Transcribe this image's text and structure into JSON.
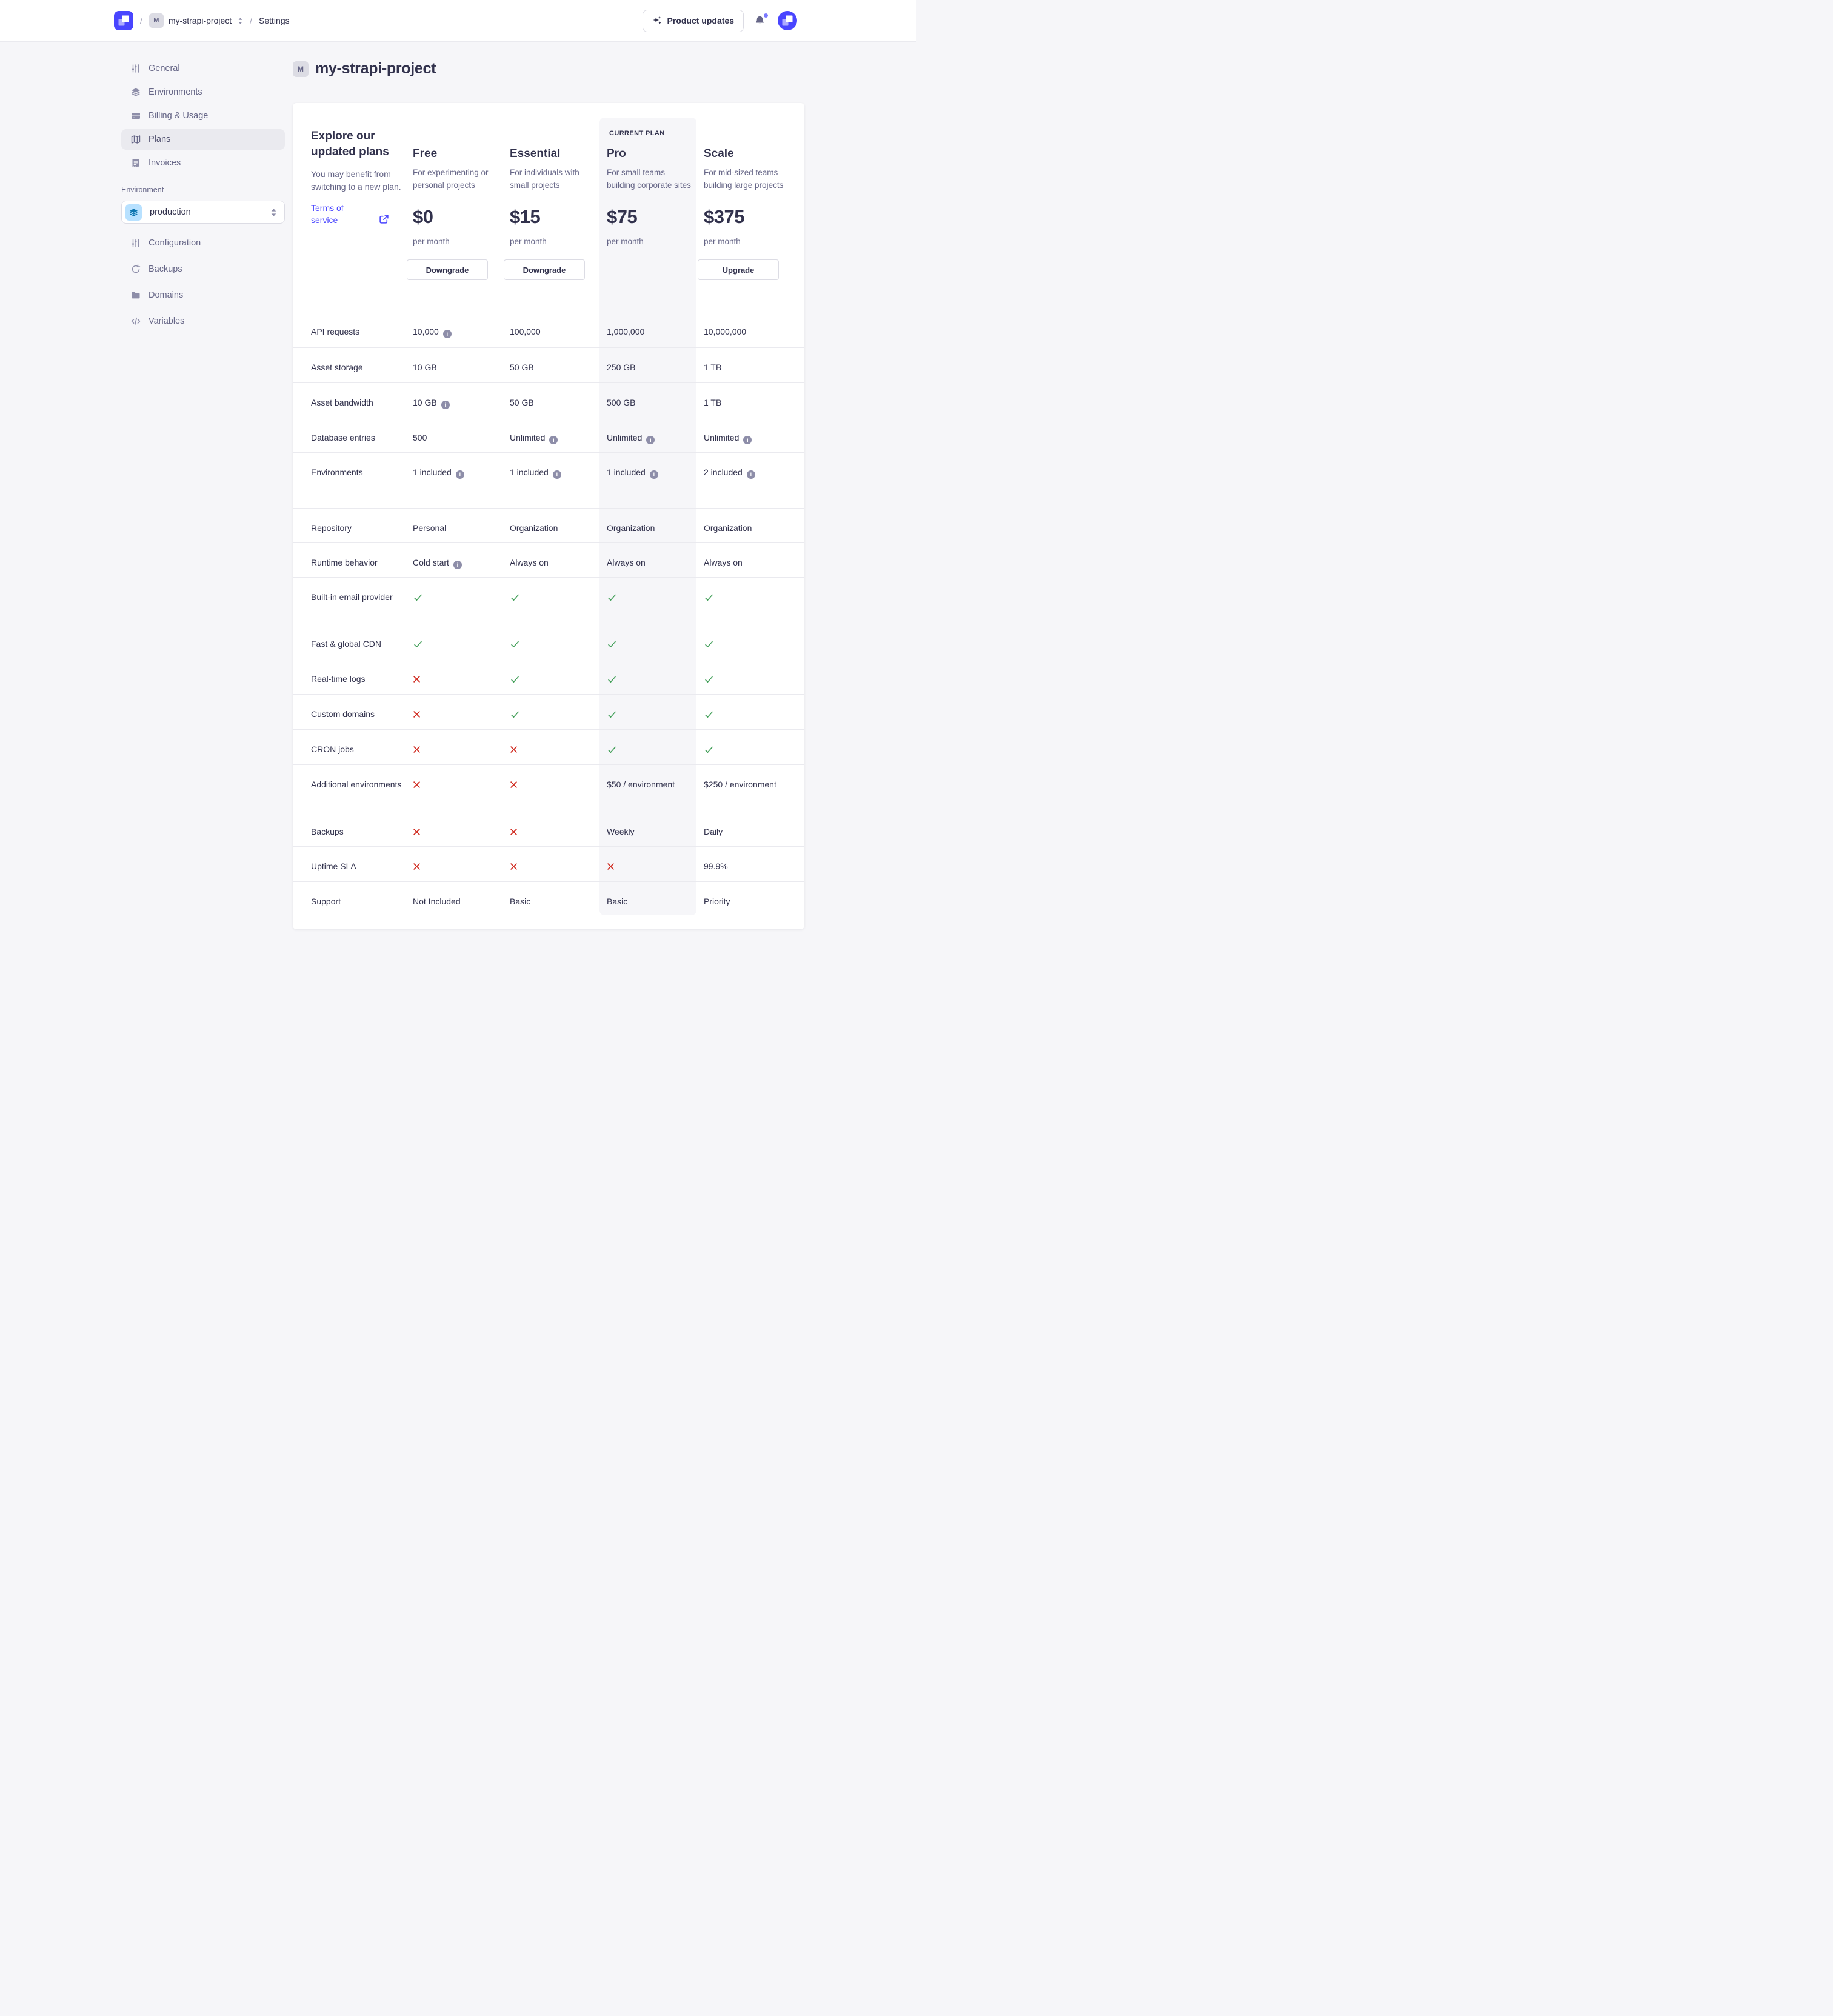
{
  "colors": {
    "accent": "#4945ff",
    "success": "#44a05a",
    "danger": "#d02b20",
    "highlight": "#f6f6f9",
    "info_icon_bg": "#8e8ea9",
    "env_chip_bg": "#b8e1ff",
    "env_chip_icon": "#0c75af"
  },
  "header": {
    "separator": "/",
    "project_chip": "M",
    "project_name": "my-strapi-project",
    "settings_label": "Settings",
    "product_updates_label": "Product updates"
  },
  "sidebar": {
    "items": [
      {
        "label": "General",
        "icon": "sliders-icon",
        "active": false
      },
      {
        "label": "Environments",
        "icon": "layers-icon",
        "active": false
      },
      {
        "label": "Billing & Usage",
        "icon": "credit-card-icon",
        "active": false
      },
      {
        "label": "Plans",
        "icon": "map-icon",
        "active": true
      },
      {
        "label": "Invoices",
        "icon": "receipt-icon",
        "active": false
      }
    ],
    "environment_label": "Environment",
    "environment_value": "production",
    "environment_items": [
      {
        "label": "Configuration",
        "icon": "sliders-icon"
      },
      {
        "label": "Backups",
        "icon": "refresh-icon"
      },
      {
        "label": "Domains",
        "icon": "folder-icon"
      },
      {
        "label": "Variables",
        "icon": "code-icon"
      }
    ]
  },
  "main": {
    "project_chip": "M",
    "title": "my-strapi-project",
    "intro": {
      "title": "Explore our updated plans",
      "subtitle": "You may benefit from switching to a new plan.",
      "link_label": "Terms of service"
    },
    "current_plan_badge": "CURRENT PLAN",
    "plans": [
      {
        "name": "Free",
        "description": "For experimenting or personal projects",
        "price": "$0",
        "period": "per month",
        "button": "Downgrade",
        "current": false
      },
      {
        "name": "Essential",
        "description": "For individuals with small projects",
        "price": "$15",
        "period": "per month",
        "button": "Downgrade",
        "current": false
      },
      {
        "name": "Pro",
        "description": "For small teams building corporate sites",
        "price": "$75",
        "period": "per month",
        "button": null,
        "current": true
      },
      {
        "name": "Scale",
        "description": "For mid-sized teams building large projects",
        "price": "$375",
        "period": "per month",
        "button": "Upgrade",
        "current": false
      }
    ],
    "features": [
      {
        "label": "API requests",
        "cells": [
          {
            "t": "10,000",
            "info": true
          },
          {
            "t": "100,000"
          },
          {
            "t": "1,000,000"
          },
          {
            "t": "10,000,000"
          }
        ]
      },
      {
        "label": "Asset storage",
        "cells": [
          {
            "t": "10 GB"
          },
          {
            "t": "50 GB"
          },
          {
            "t": "250 GB"
          },
          {
            "t": "1 TB"
          }
        ]
      },
      {
        "label": "Asset bandwidth",
        "cells": [
          {
            "t": "10 GB",
            "info": true
          },
          {
            "t": "50 GB"
          },
          {
            "t": "500 GB"
          },
          {
            "t": "1 TB"
          }
        ]
      },
      {
        "label": "Database entries",
        "cells": [
          {
            "t": "500"
          },
          {
            "t": "Unlimited",
            "info": true
          },
          {
            "t": "Unlimited",
            "info": true
          },
          {
            "t": "Unlimited",
            "info": true
          }
        ]
      },
      {
        "label": "Environments",
        "cells": [
          {
            "t": "1 included",
            "info": true
          },
          {
            "t": "1 included",
            "info": true
          },
          {
            "t": "1 included",
            "info": true
          },
          {
            "t": "2 included",
            "info": true
          }
        ]
      },
      {
        "label": "Repository",
        "cells": [
          {
            "t": "Personal"
          },
          {
            "t": "Organization"
          },
          {
            "t": "Organization"
          },
          {
            "t": "Organization"
          }
        ]
      },
      {
        "label": "Runtime behavior",
        "cells": [
          {
            "t": "Cold start",
            "info": true
          },
          {
            "t": "Always on"
          },
          {
            "t": "Always on"
          },
          {
            "t": "Always on"
          }
        ]
      },
      {
        "label": "Built-in email provider",
        "cells": [
          {
            "icon": "check-icon"
          },
          {
            "icon": "check-icon"
          },
          {
            "icon": "check-icon"
          },
          {
            "icon": "check-icon"
          }
        ]
      },
      {
        "label": "Fast & global CDN",
        "cells": [
          {
            "icon": "check-icon"
          },
          {
            "icon": "check-icon"
          },
          {
            "icon": "check-icon"
          },
          {
            "icon": "check-icon"
          }
        ]
      },
      {
        "label": "Real-time logs",
        "cells": [
          {
            "icon": "cross-icon"
          },
          {
            "icon": "check-icon"
          },
          {
            "icon": "check-icon"
          },
          {
            "icon": "check-icon"
          }
        ]
      },
      {
        "label": "Custom domains",
        "cells": [
          {
            "icon": "cross-icon"
          },
          {
            "icon": "check-icon"
          },
          {
            "icon": "check-icon"
          },
          {
            "icon": "check-icon"
          }
        ]
      },
      {
        "label": "CRON jobs",
        "cells": [
          {
            "icon": "cross-icon"
          },
          {
            "icon": "cross-icon"
          },
          {
            "icon": "check-icon"
          },
          {
            "icon": "check-icon"
          }
        ]
      },
      {
        "label": "Additional environments",
        "cells": [
          {
            "icon": "cross-icon"
          },
          {
            "icon": "cross-icon"
          },
          {
            "t": "$50 / environment"
          },
          {
            "t": "$250 / environment"
          }
        ]
      },
      {
        "label": "Backups",
        "cells": [
          {
            "icon": "cross-icon"
          },
          {
            "icon": "cross-icon"
          },
          {
            "t": "Weekly"
          },
          {
            "t": "Daily"
          }
        ]
      },
      {
        "label": "Uptime SLA",
        "cells": [
          {
            "icon": "cross-icon"
          },
          {
            "icon": "cross-icon"
          },
          {
            "icon": "cross-icon"
          },
          {
            "t": "99.9%"
          }
        ]
      },
      {
        "label": "Support",
        "cells": [
          {
            "t": "Not Included"
          },
          {
            "t": "Basic"
          },
          {
            "t": "Basic"
          },
          {
            "t": "Priority"
          }
        ]
      }
    ]
  }
}
